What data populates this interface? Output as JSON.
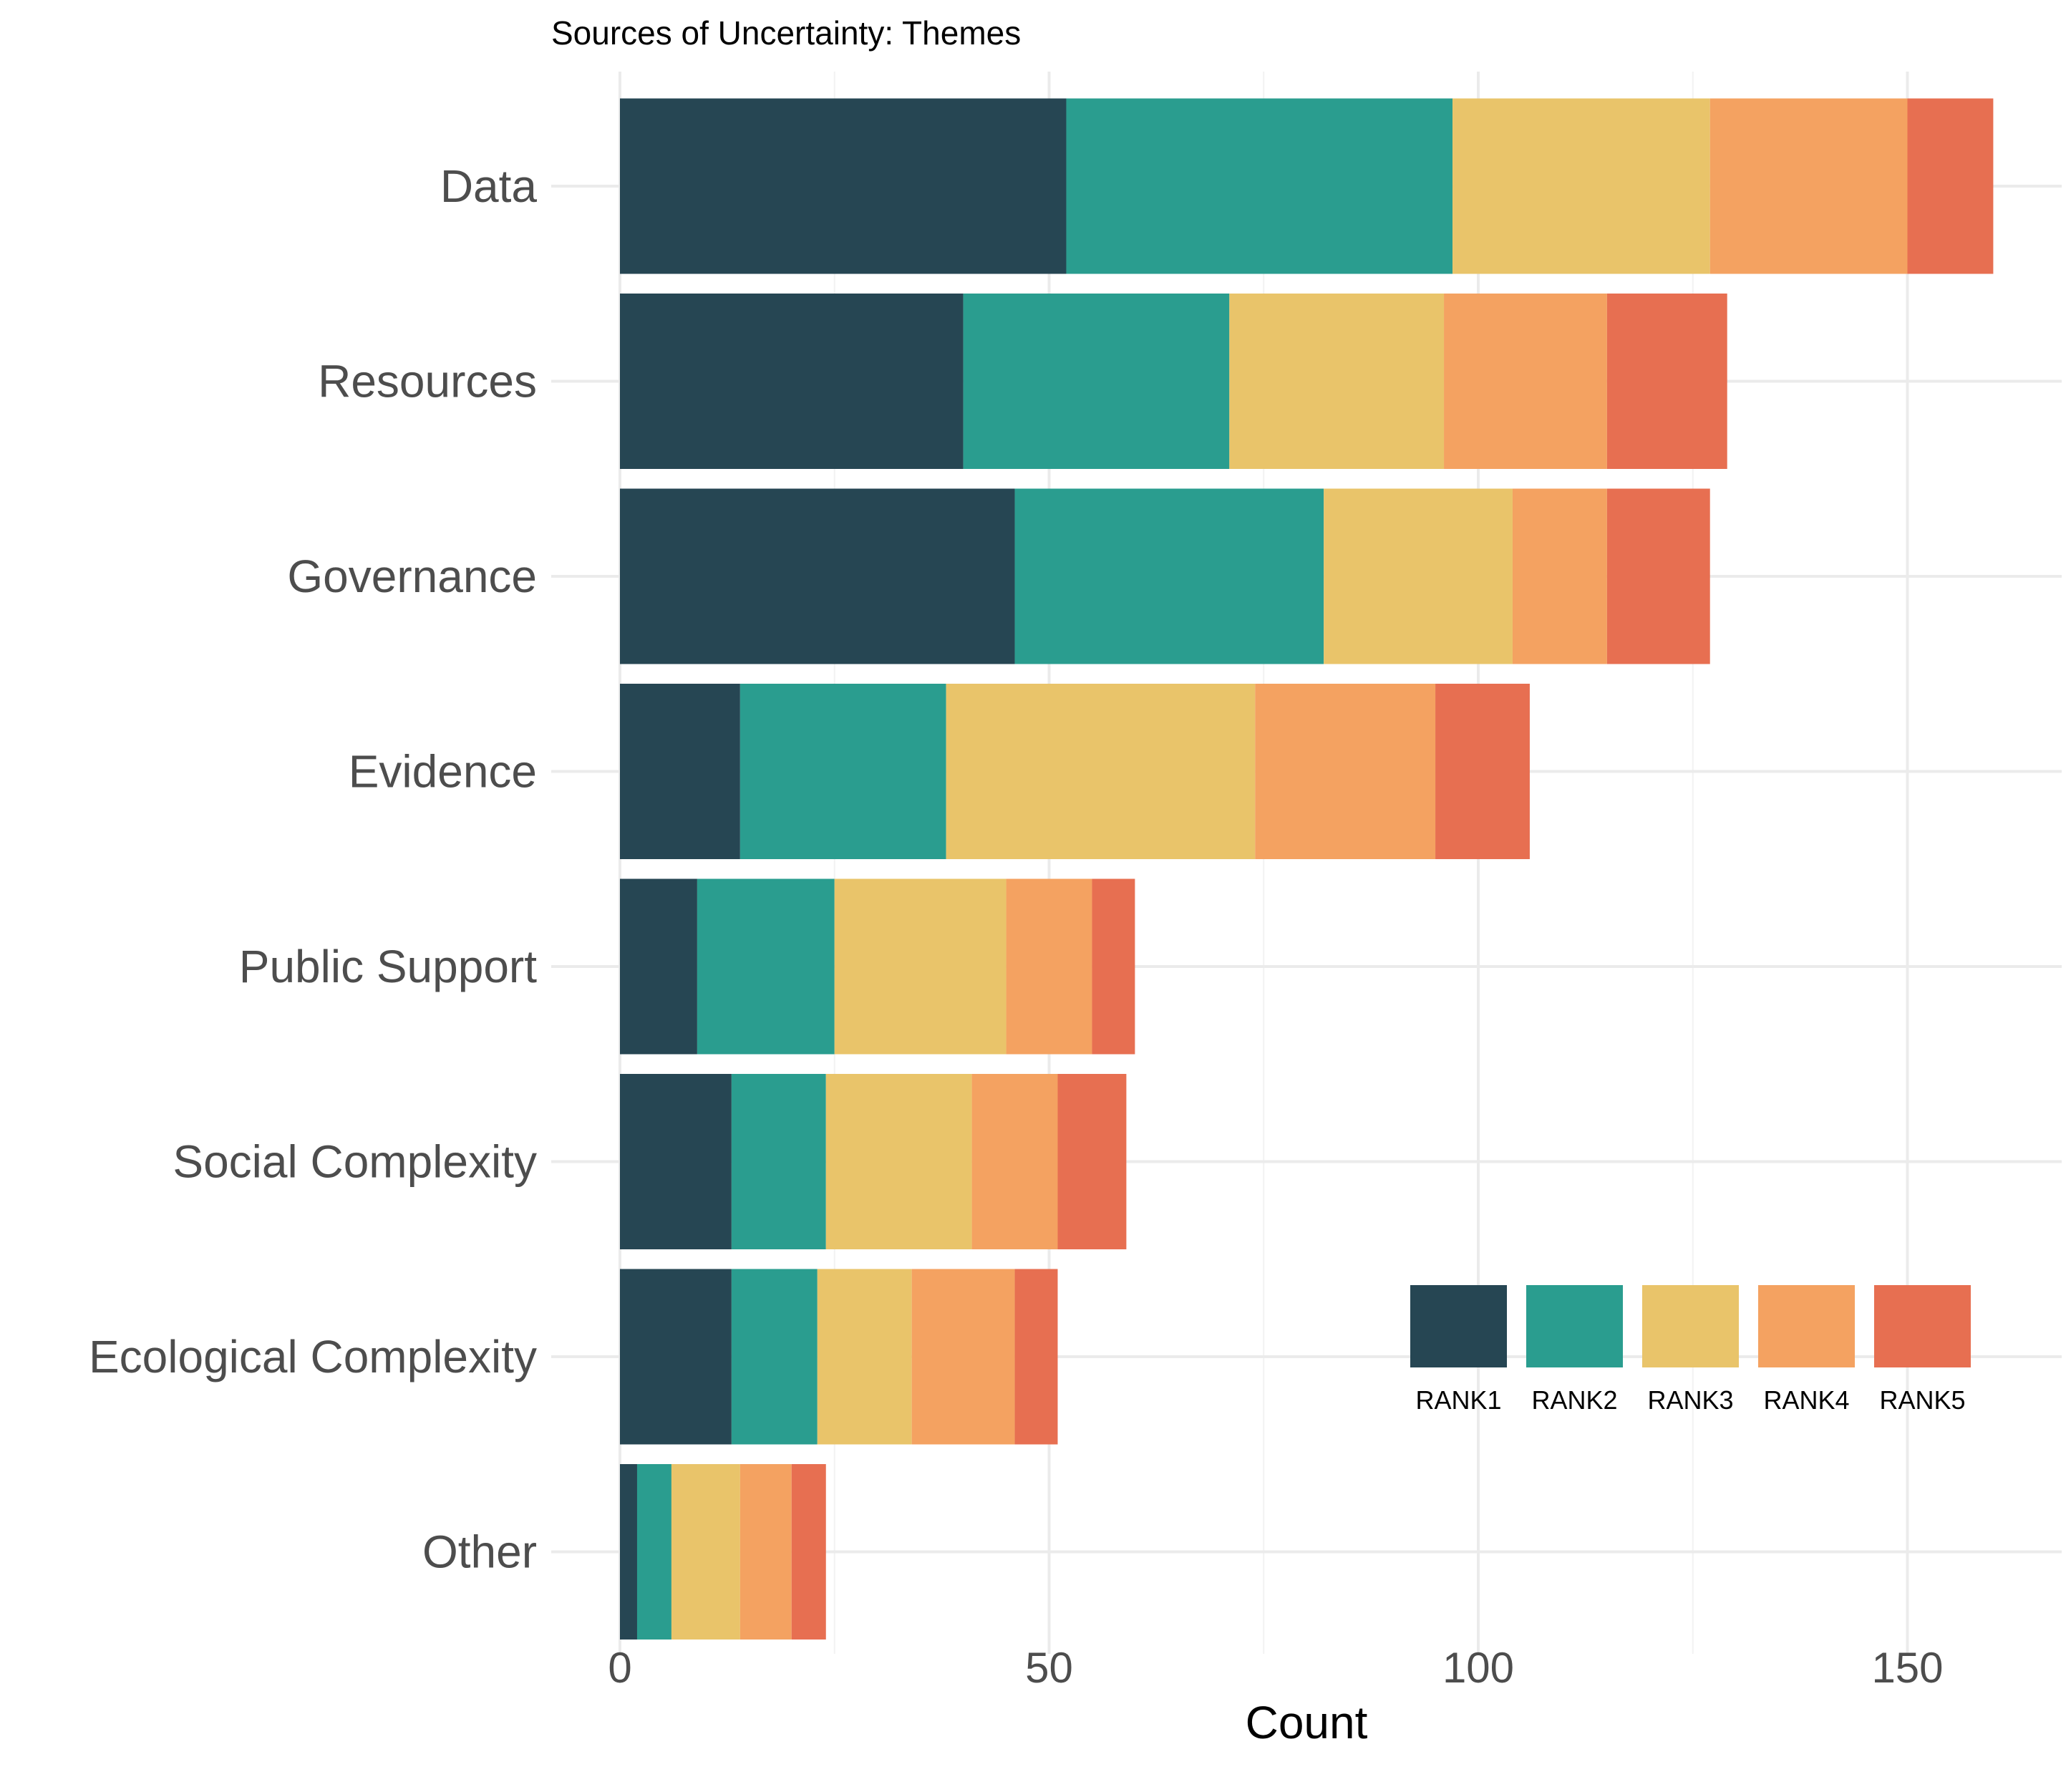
{
  "chart_data": {
    "type": "bar",
    "orientation": "horizontal",
    "stacked": true,
    "title": "Sources of Uncertainty: Themes",
    "xlabel": "Count",
    "ylabel": "",
    "xlim": [
      0,
      160
    ],
    "x_ticks": [
      "0",
      "50",
      "100",
      "150"
    ],
    "grid": true,
    "legend_position": "bottom-right",
    "categories": [
      "Data",
      "Resources",
      "Governance",
      "Evidence",
      "Public Support",
      "Social Complexity",
      "Ecological Complexity",
      "Other"
    ],
    "series": [
      {
        "name": "RANK1",
        "color": "#264653",
        "values": [
          52,
          40,
          46,
          14,
          9,
          13,
          13,
          2
        ]
      },
      {
        "name": "RANK2",
        "color": "#2a9d8f",
        "values": [
          45,
          31,
          36,
          24,
          16,
          11,
          10,
          4
        ]
      },
      {
        "name": "RANK3",
        "color": "#e9c46a",
        "values": [
          30,
          25,
          22,
          36,
          20,
          17,
          11,
          8
        ]
      },
      {
        "name": "RANK4",
        "color": "#f4a261",
        "values": [
          23,
          19,
          11,
          21,
          10,
          10,
          12,
          6
        ]
      },
      {
        "name": "RANK5",
        "color": "#e76f51",
        "values": [
          10,
          14,
          12,
          11,
          5,
          8,
          5,
          4
        ]
      }
    ]
  }
}
